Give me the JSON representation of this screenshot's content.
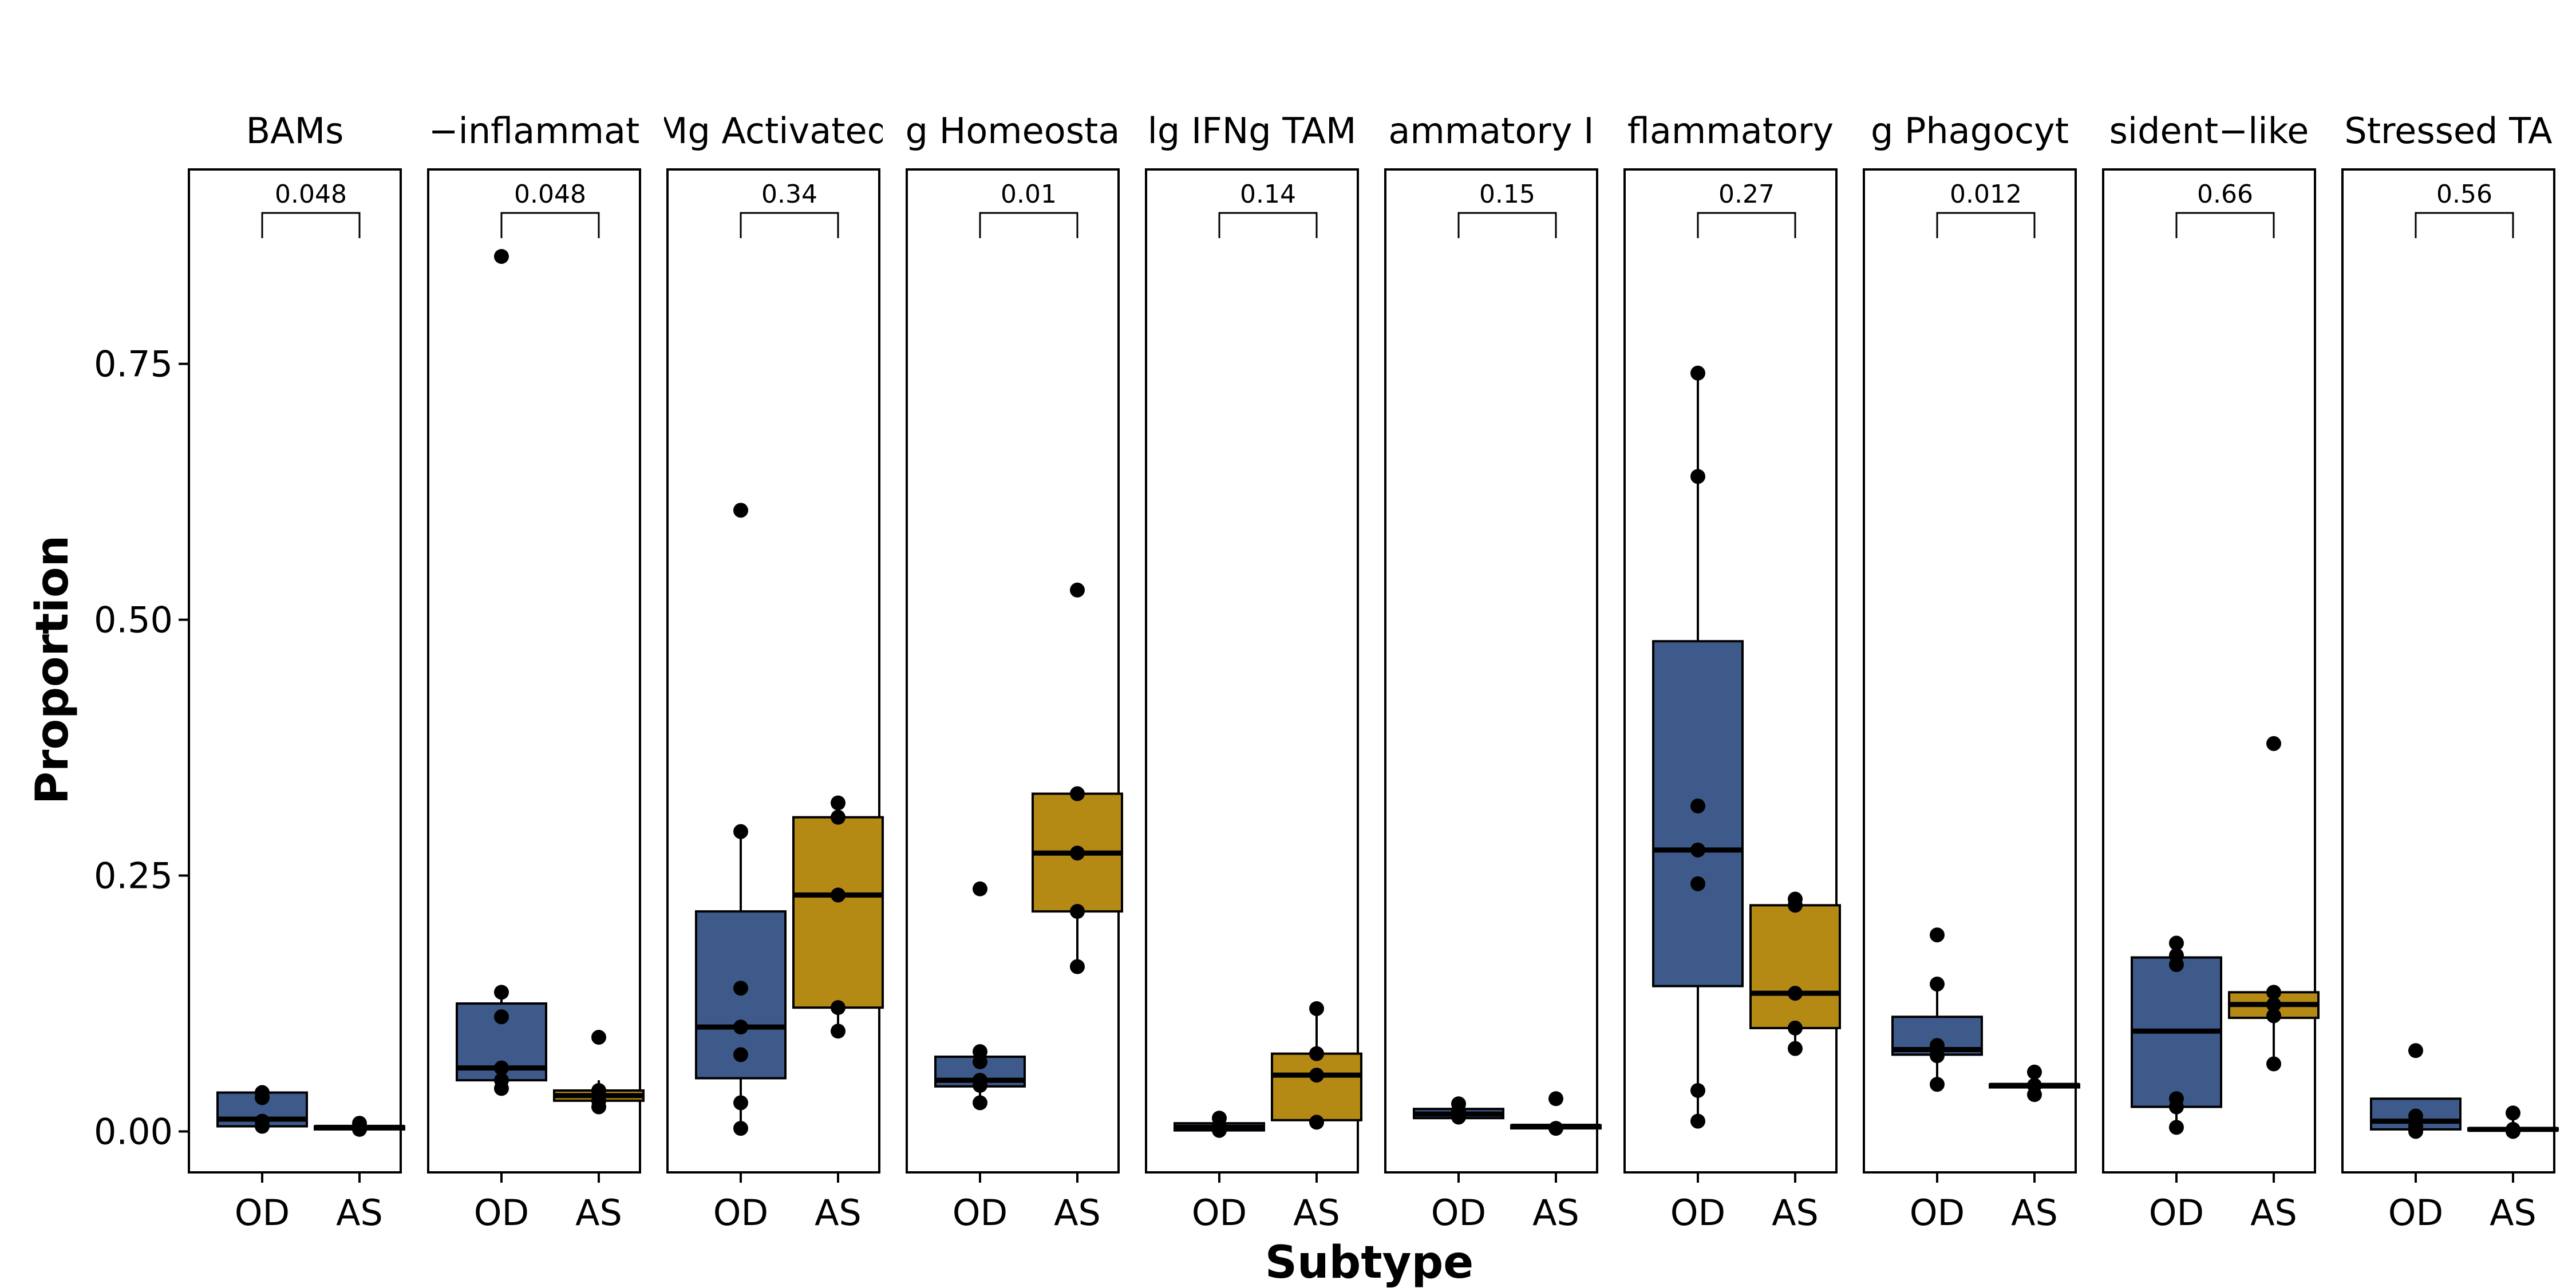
{
  "chart_data": {
    "type": "box",
    "xlabel": "Subtype",
    "ylabel": "Proportion",
    "ylim": [
      -0.04,
      0.94
    ],
    "yticks": [
      0.0,
      0.25,
      0.5,
      0.75
    ],
    "ytick_labels": [
      "0.00",
      "0.25",
      "0.50",
      "0.75"
    ],
    "categories": [
      "OD",
      "AS"
    ],
    "colors": {
      "OD": "#3d5a8a",
      "AS": "#b58a14"
    },
    "grid": false,
    "legend": "none",
    "panels": [
      {
        "title": "BAMs",
        "pvalue": "0.048",
        "OD": {
          "q1": 0.005,
          "median": 0.012,
          "q3": 0.038,
          "whisker_low": 0.005,
          "whisker_high": 0.038,
          "points": [
            0.005,
            0.01,
            0.033,
            0.038
          ]
        },
        "AS": {
          "q1": 0.002,
          "median": 0.004,
          "q3": 0.005,
          "whisker_low": 0.002,
          "whisker_high": 0.008,
          "points": [
            0.002,
            0.004,
            0.008
          ]
        }
      },
      {
        "title": "−inflammat",
        "pvalue": "0.048",
        "OD": {
          "q1": 0.05,
          "median": 0.062,
          "q3": 0.125,
          "whisker_low": 0.042,
          "whisker_high": 0.136,
          "points": [
            0.042,
            0.05,
            0.062,
            0.112,
            0.136,
            0.855
          ]
        },
        "AS": {
          "q1": 0.03,
          "median": 0.035,
          "q3": 0.04,
          "whisker_low": 0.024,
          "whisker_high": 0.05,
          "points": [
            0.024,
            0.03,
            0.04,
            0.092
          ]
        }
      },
      {
        "title": "Mg Activated",
        "pvalue": "0.34",
        "OD": {
          "q1": 0.052,
          "median": 0.102,
          "q3": 0.215,
          "whisker_low": 0.003,
          "whisker_high": 0.293,
          "points": [
            0.003,
            0.028,
            0.075,
            0.102,
            0.14,
            0.293,
            0.607
          ]
        },
        "AS": {
          "q1": 0.121,
          "median": 0.231,
          "q3": 0.307,
          "whisker_low": 0.098,
          "whisker_high": 0.321,
          "points": [
            0.098,
            0.121,
            0.231,
            0.307,
            0.321
          ]
        }
      },
      {
        "title": "g Homeosta",
        "pvalue": "0.01",
        "OD": {
          "q1": 0.044,
          "median": 0.05,
          "q3": 0.073,
          "whisker_low": 0.028,
          "whisker_high": 0.078,
          "points": [
            0.028,
            0.045,
            0.05,
            0.068,
            0.078,
            0.237
          ]
        },
        "AS": {
          "q1": 0.215,
          "median": 0.272,
          "q3": 0.33,
          "whisker_low": 0.161,
          "whisker_high": 0.33,
          "points": [
            0.161,
            0.215,
            0.272,
            0.33,
            0.529
          ]
        }
      },
      {
        "title": "lg IFNg TAM",
        "pvalue": "0.14",
        "OD": {
          "q1": 0.001,
          "median": 0.004,
          "q3": 0.008,
          "whisker_low": 0.001,
          "whisker_high": 0.013,
          "points": [
            0.001,
            0.005,
            0.013
          ]
        },
        "AS": {
          "q1": 0.011,
          "median": 0.055,
          "q3": 0.076,
          "whisker_low": 0.009,
          "whisker_high": 0.12,
          "points": [
            0.009,
            0.055,
            0.076,
            0.12
          ]
        }
      },
      {
        "title": "ammatory I",
        "pvalue": "0.15",
        "OD": {
          "q1": 0.013,
          "median": 0.017,
          "q3": 0.022,
          "whisker_low": 0.013,
          "whisker_high": 0.027,
          "points": [
            0.014,
            0.02,
            0.027
          ]
        },
        "AS": {
          "q1": 0.003,
          "median": 0.005,
          "q3": 0.006,
          "whisker_low": 0.002,
          "whisker_high": 0.006,
          "points": [
            0.003,
            0.032
          ]
        }
      },
      {
        "title": "flammatory",
        "pvalue": "0.27",
        "OD": {
          "q1": 0.142,
          "median": 0.275,
          "q3": 0.479,
          "whisker_low": 0.01,
          "whisker_high": 0.741,
          "points": [
            0.01,
            0.04,
            0.242,
            0.275,
            0.318,
            0.64,
            0.741
          ]
        },
        "AS": {
          "q1": 0.101,
          "median": 0.135,
          "q3": 0.221,
          "whisker_low": 0.081,
          "whisker_high": 0.227,
          "points": [
            0.081,
            0.101,
            0.135,
            0.221,
            0.227
          ]
        }
      },
      {
        "title": "g Phagocyt",
        "pvalue": "0.012",
        "OD": {
          "q1": 0.075,
          "median": 0.08,
          "q3": 0.112,
          "whisker_low": 0.046,
          "whisker_high": 0.144,
          "points": [
            0.046,
            0.074,
            0.084,
            0.144,
            0.192
          ]
        },
        "AS": {
          "q1": 0.043,
          "median": 0.045,
          "q3": 0.046,
          "whisker_low": 0.036,
          "whisker_high": 0.058,
          "points": [
            0.036,
            0.045,
            0.058
          ]
        }
      },
      {
        "title": "sident−like",
        "pvalue": "0.66",
        "OD": {
          "q1": 0.024,
          "median": 0.098,
          "q3": 0.17,
          "whisker_low": 0.004,
          "whisker_high": 0.184,
          "points": [
            0.004,
            0.024,
            0.032,
            0.163,
            0.172,
            0.184
          ]
        },
        "AS": {
          "q1": 0.111,
          "median": 0.124,
          "q3": 0.136,
          "whisker_low": 0.066,
          "whisker_high": 0.136,
          "points": [
            0.066,
            0.113,
            0.124,
            0.136,
            0.379
          ]
        }
      },
      {
        "title": "Stressed TA",
        "pvalue": "0.56",
        "OD": {
          "q1": 0.002,
          "median": 0.01,
          "q3": 0.032,
          "whisker_low": 0.0,
          "whisker_high": 0.032,
          "points": [
            0.0,
            0.005,
            0.015,
            0.079
          ]
        },
        "AS": {
          "q1": 0.001,
          "median": 0.002,
          "q3": 0.003,
          "whisker_low": 0.0,
          "whisker_high": 0.018,
          "points": [
            0.0,
            0.002,
            0.018
          ]
        }
      }
    ]
  }
}
